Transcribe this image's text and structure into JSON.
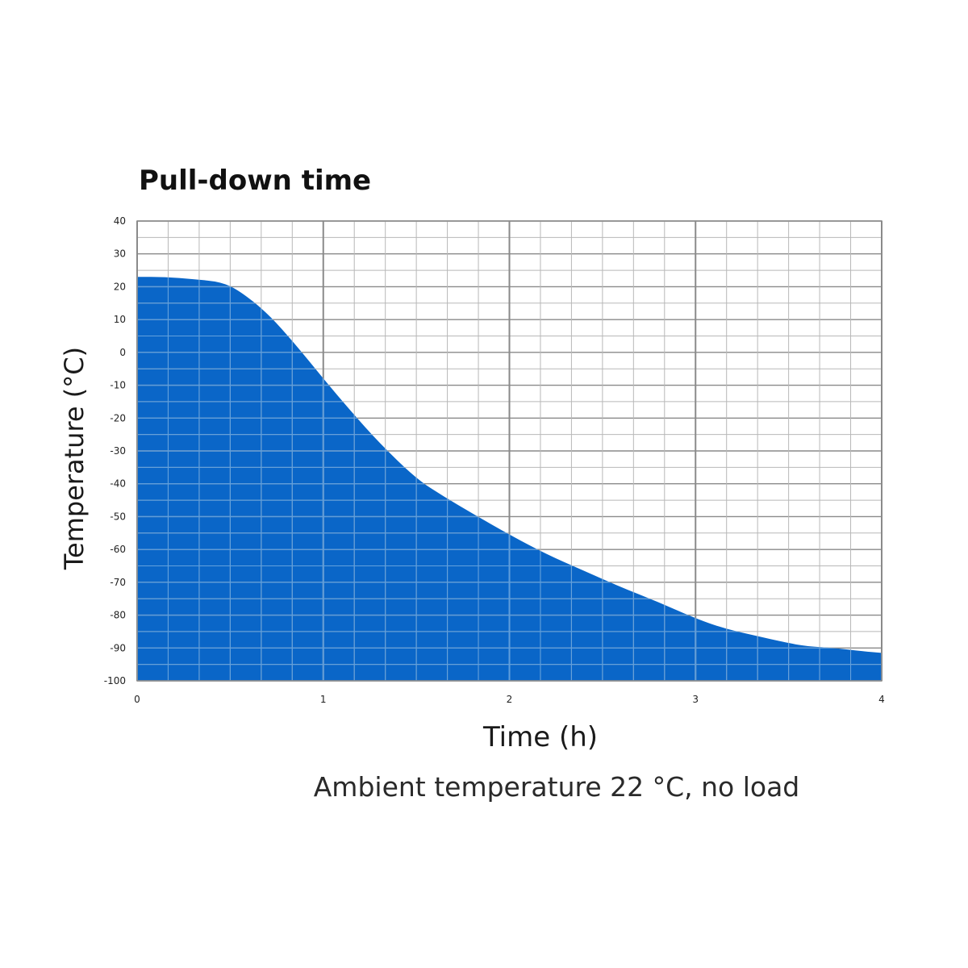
{
  "colors": {
    "fill": "#0a66c8",
    "grid_minor": "#b8b8b8",
    "grid_major": "#8a8a8a",
    "grid_on_fill": "#5ea0e0"
  },
  "chart_data": {
    "type": "area",
    "title": "Pull-down time",
    "xlabel": "Time (h)",
    "ylabel": "Temperature (°C)",
    "subtitle": "Ambient temperature 22 °C, no load",
    "xlim": [
      0,
      4
    ],
    "ylim": [
      -100,
      40
    ],
    "xticks": [
      "0",
      "1",
      "2",
      "3",
      "4"
    ],
    "yticks": [
      "40",
      "30",
      "20",
      "10",
      "0",
      "-10",
      "-20",
      "-30",
      "-40",
      "-50",
      "-60",
      "-70",
      "-80",
      "-90",
      "-100"
    ],
    "grid": true,
    "series": [
      {
        "x": [
          0,
          0.15,
          0.3,
          0.45,
          0.55,
          0.7,
          0.85,
          1.0,
          1.15,
          1.3,
          1.5,
          1.65,
          1.8,
          2.0,
          2.2,
          2.4,
          2.6,
          2.8,
          3.0,
          3.15,
          3.3,
          3.5,
          3.6,
          3.75,
          3.9,
          4.0
        ],
        "y": [
          23,
          23,
          22.3,
          21.5,
          18.8,
          12,
          2.5,
          -8,
          -18,
          -27.5,
          -38.5,
          -44,
          -49,
          -55.5,
          -61.5,
          -66.5,
          -71.5,
          -76,
          -81,
          -84,
          -86,
          -88.5,
          -89.5,
          -90,
          -91,
          -91.5
        ]
      }
    ]
  }
}
